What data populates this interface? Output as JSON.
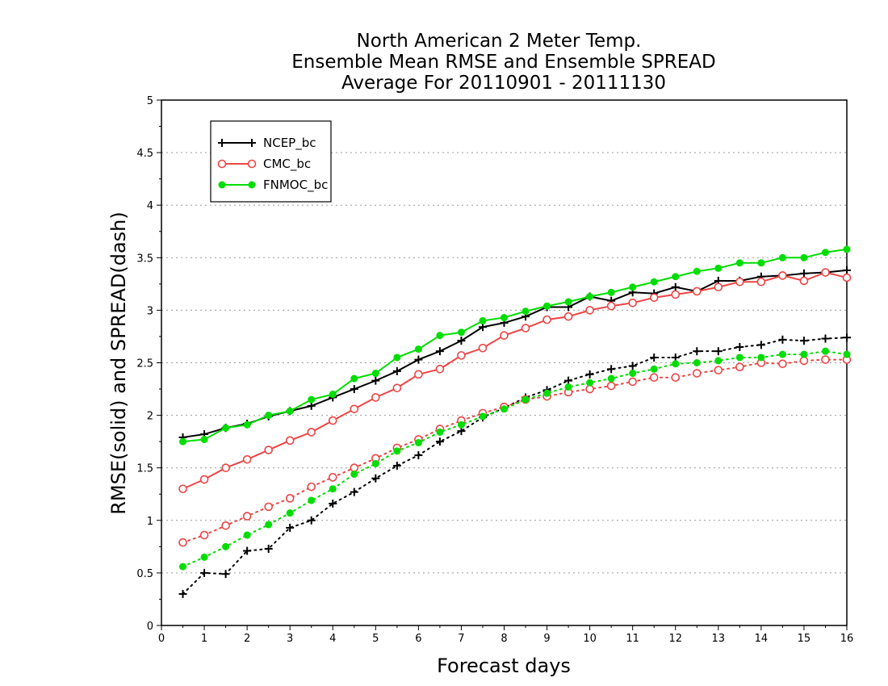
{
  "chart_data": {
    "type": "line",
    "title": [
      "North American 2 Meter Temp.",
      "Ensemble Mean RMSE and Ensemble SPREAD",
      "Average For 20110901 - 20111130"
    ],
    "xlabel": "Forecast days",
    "ylabel": "RMSE(solid) and SPREAD(dash)",
    "xlim": [
      0,
      16
    ],
    "ylim": [
      0,
      5
    ],
    "xticks": [
      "0",
      "1",
      "2",
      "3",
      "4",
      "5",
      "6",
      "7",
      "8",
      "9",
      "10",
      "11",
      "12",
      "13",
      "14",
      "15",
      "16"
    ],
    "yticks": [
      "0",
      "0.5",
      "1",
      "1.5",
      "2",
      "2.5",
      "3",
      "3.5",
      "4",
      "4.5",
      "5"
    ],
    "grid": "horizontal dotted",
    "legend_position": "top-left",
    "x": [
      0.5,
      1,
      1.5,
      2,
      2.5,
      3,
      3.5,
      4,
      4.5,
      5,
      5.5,
      6,
      6.5,
      7,
      7.5,
      8,
      8.5,
      9,
      9.5,
      10,
      10.5,
      11,
      11.5,
      12,
      12.5,
      13,
      13.5,
      14,
      14.5,
      15,
      15.5,
      16
    ],
    "series": [
      {
        "name": "NCEP_bc",
        "color": "#000000",
        "marker": "plus",
        "rmse": [
          1.79,
          1.82,
          1.88,
          1.92,
          1.99,
          2.04,
          2.09,
          2.17,
          2.25,
          2.33,
          2.42,
          2.53,
          2.61,
          2.71,
          2.84,
          2.88,
          2.94,
          3.03,
          3.03,
          3.13,
          3.09,
          3.17,
          3.16,
          3.22,
          3.18,
          3.28,
          3.28,
          3.32,
          3.33,
          3.35,
          3.36,
          3.38
        ],
        "spread": [
          0.3,
          0.5,
          0.49,
          0.71,
          0.73,
          0.93,
          1.0,
          1.16,
          1.27,
          1.4,
          1.52,
          1.62,
          1.75,
          1.85,
          1.98,
          2.07,
          2.17,
          2.24,
          2.33,
          2.39,
          2.44,
          2.47,
          2.55,
          2.55,
          2.61,
          2.61,
          2.65,
          2.67,
          2.72,
          2.71,
          2.73,
          2.74
        ]
      },
      {
        "name": "CMC_bc",
        "color": "#ee4444",
        "marker": "open-circle",
        "rmse": [
          1.3,
          1.39,
          1.5,
          1.58,
          1.67,
          1.76,
          1.84,
          1.95,
          2.06,
          2.17,
          2.26,
          2.39,
          2.44,
          2.57,
          2.64,
          2.76,
          2.83,
          2.91,
          2.94,
          3.0,
          3.04,
          3.07,
          3.12,
          3.15,
          3.18,
          3.22,
          3.27,
          3.27,
          3.33,
          3.28,
          3.36,
          3.31
        ],
        "spread": [
          0.79,
          0.86,
          0.95,
          1.04,
          1.13,
          1.21,
          1.32,
          1.41,
          1.5,
          1.59,
          1.69,
          1.77,
          1.87,
          1.95,
          2.02,
          2.08,
          2.15,
          2.18,
          2.22,
          2.25,
          2.28,
          2.32,
          2.36,
          2.36,
          2.4,
          2.43,
          2.46,
          2.5,
          2.49,
          2.52,
          2.53,
          2.53
        ]
      },
      {
        "name": "FNMOC_bc",
        "color": "#00dd00",
        "marker": "filled-circle",
        "rmse": [
          1.75,
          1.77,
          1.88,
          1.91,
          2.0,
          2.04,
          2.15,
          2.2,
          2.35,
          2.4,
          2.55,
          2.63,
          2.76,
          2.79,
          2.9,
          2.93,
          2.99,
          3.04,
          3.08,
          3.13,
          3.17,
          3.22,
          3.27,
          3.32,
          3.37,
          3.4,
          3.45,
          3.45,
          3.5,
          3.5,
          3.55,
          3.58
        ],
        "spread": [
          0.56,
          0.65,
          0.75,
          0.86,
          0.96,
          1.07,
          1.19,
          1.3,
          1.44,
          1.54,
          1.66,
          1.74,
          1.84,
          1.91,
          1.99,
          2.06,
          2.15,
          2.21,
          2.27,
          2.31,
          2.35,
          2.4,
          2.44,
          2.49,
          2.5,
          2.52,
          2.55,
          2.55,
          2.58,
          2.58,
          2.61,
          2.58
        ]
      }
    ]
  }
}
